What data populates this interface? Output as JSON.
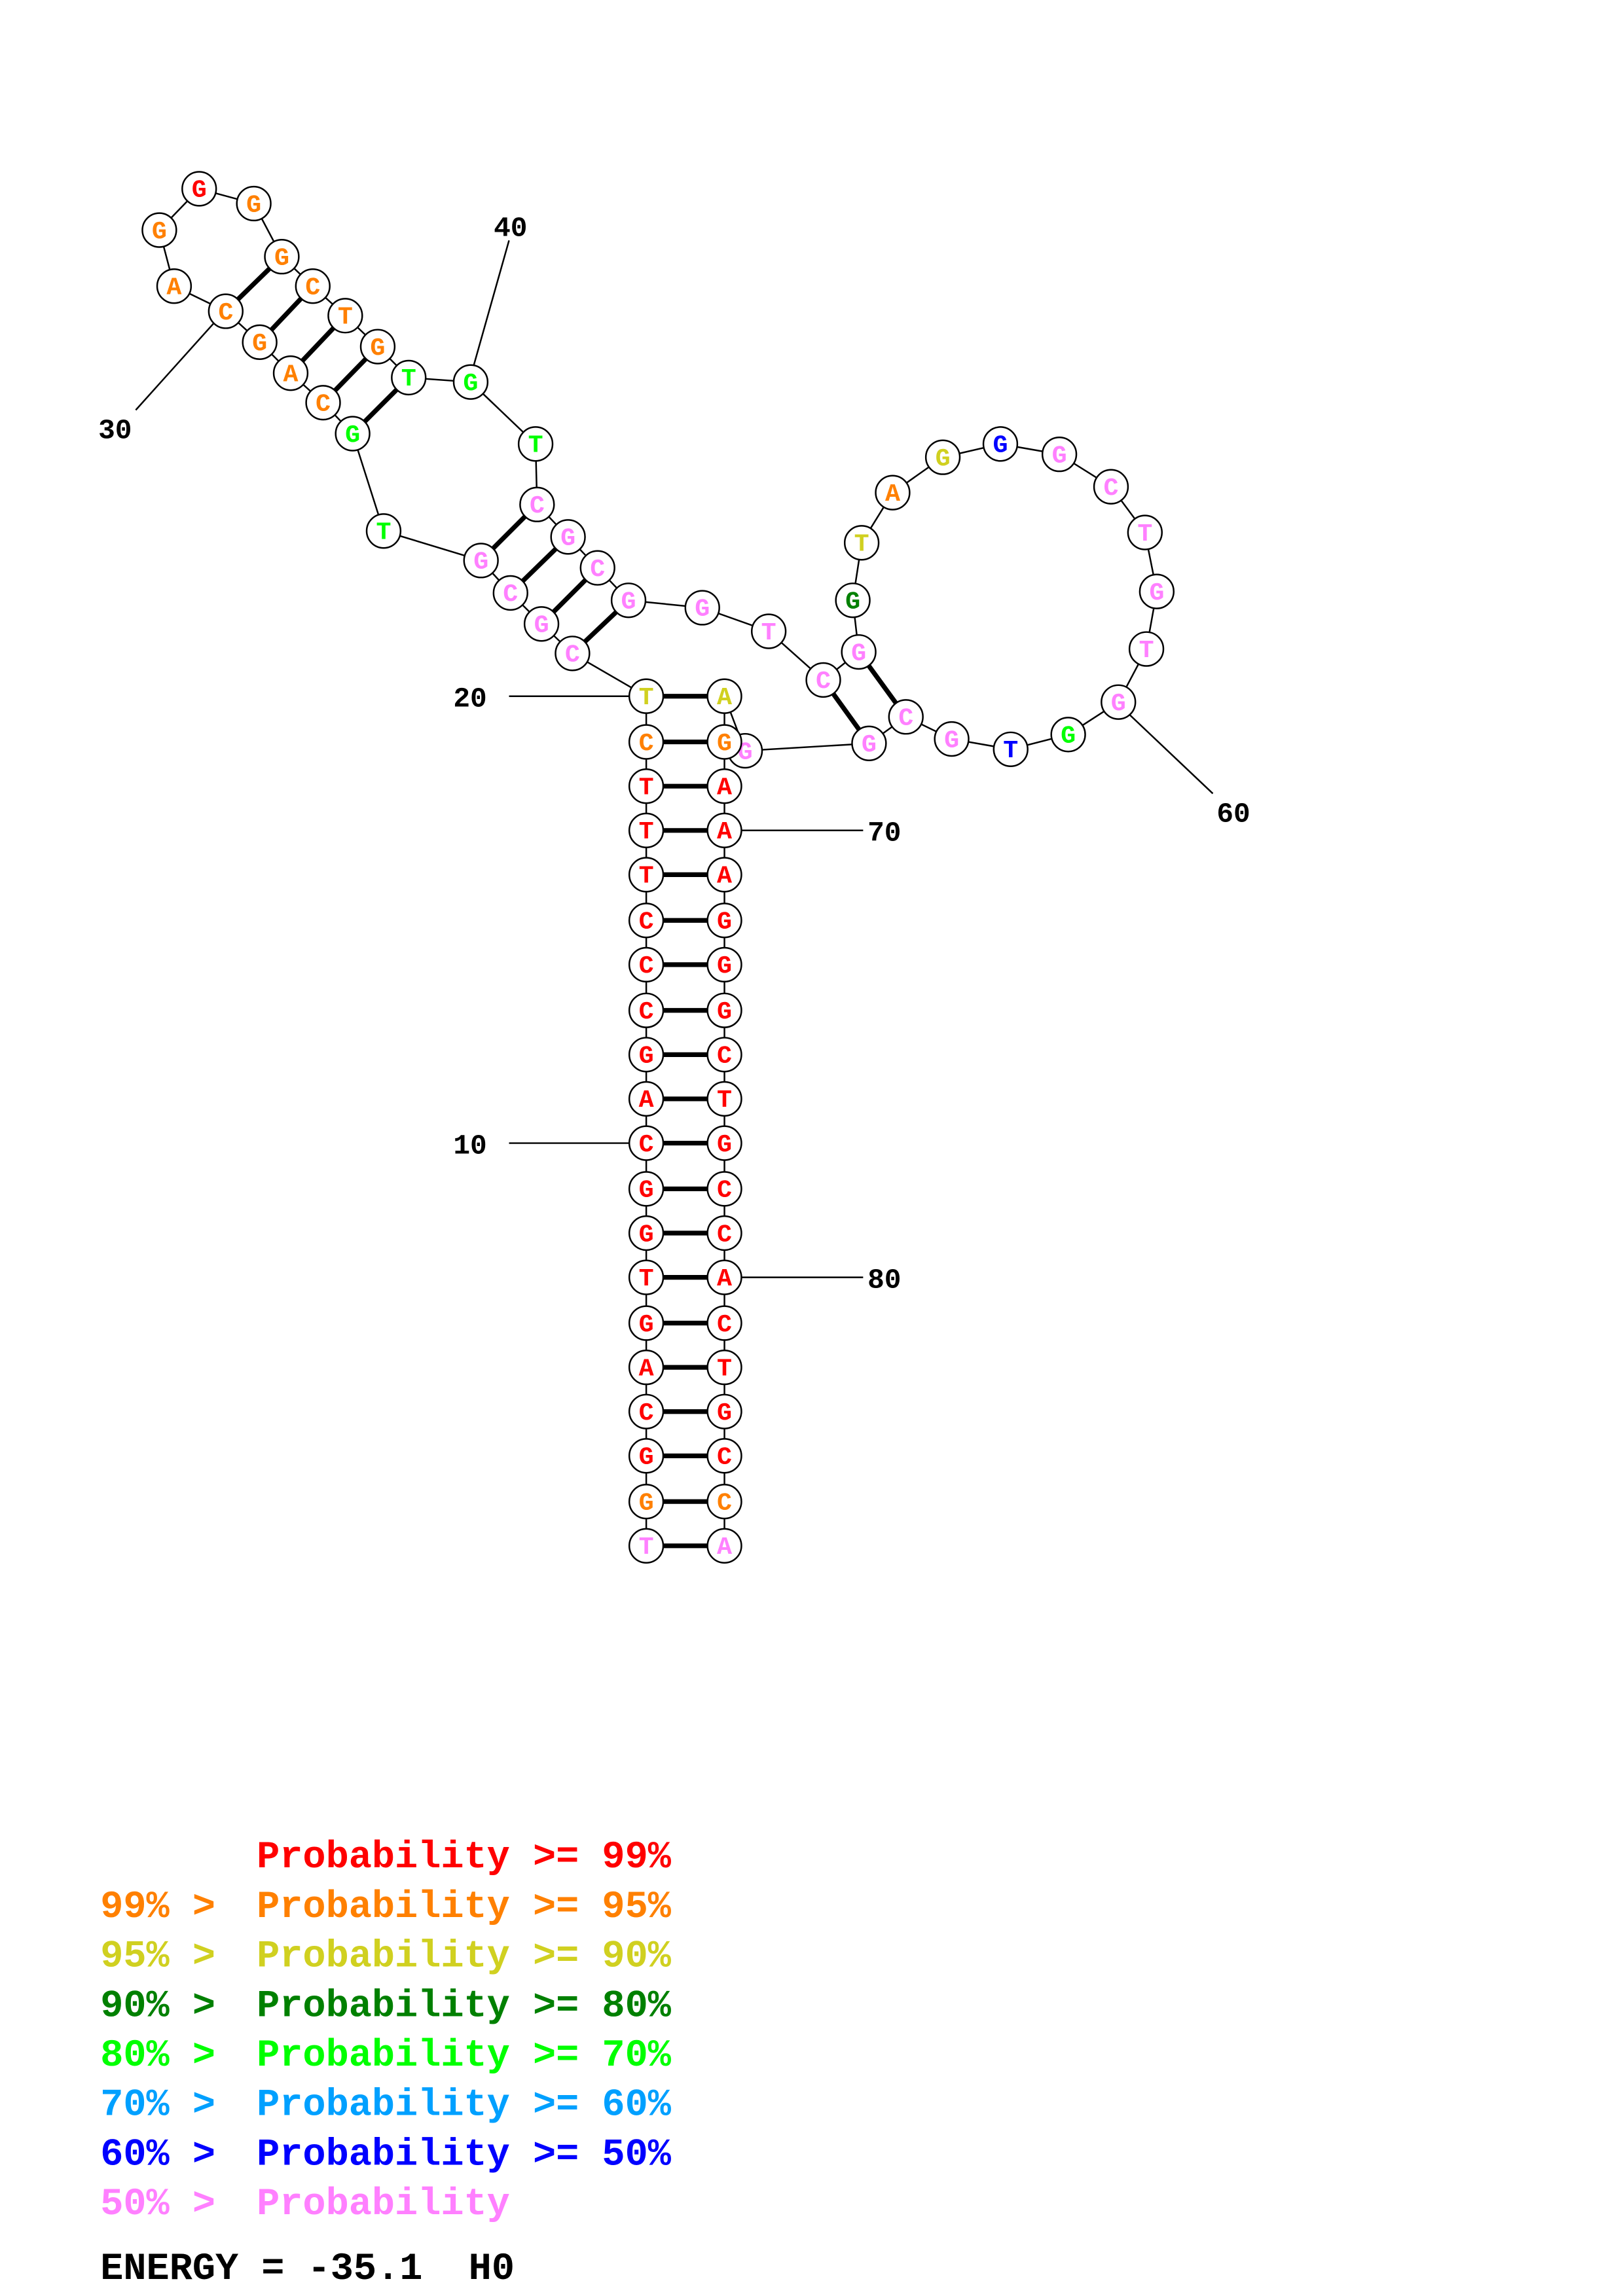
{
  "colors": {
    "p99": "#ff0000",
    "p95": "#ff8000",
    "p90": "#d0d020",
    "p80": "#008000",
    "p70": "#00ff00",
    "p60": "#00a0ff",
    "p50": "#0000ff",
    "plow": "#ff80ff"
  },
  "sequence": [
    {
      "n": 1,
      "base": "T",
      "prob": "plow"
    },
    {
      "n": 2,
      "base": "G",
      "prob": "p95"
    },
    {
      "n": 3,
      "base": "G",
      "prob": "p99"
    },
    {
      "n": 4,
      "base": "C",
      "prob": "p99"
    },
    {
      "n": 5,
      "base": "A",
      "prob": "p99"
    },
    {
      "n": 6,
      "base": "G",
      "prob": "p99"
    },
    {
      "n": 7,
      "base": "T",
      "prob": "p99"
    },
    {
      "n": 8,
      "base": "G",
      "prob": "p99"
    },
    {
      "n": 9,
      "base": "G",
      "prob": "p99"
    },
    {
      "n": 10,
      "base": "C",
      "prob": "p99"
    },
    {
      "n": 11,
      "base": "A",
      "prob": "p99"
    },
    {
      "n": 12,
      "base": "G",
      "prob": "p99"
    },
    {
      "n": 13,
      "base": "C",
      "prob": "p99"
    },
    {
      "n": 14,
      "base": "C",
      "prob": "p99"
    },
    {
      "n": 15,
      "base": "C",
      "prob": "p99"
    },
    {
      "n": 16,
      "base": "T",
      "prob": "p99"
    },
    {
      "n": 17,
      "base": "T",
      "prob": "p99"
    },
    {
      "n": 18,
      "base": "T",
      "prob": "p99"
    },
    {
      "n": 19,
      "base": "C",
      "prob": "p95"
    },
    {
      "n": 20,
      "base": "T",
      "prob": "p90"
    },
    {
      "n": 21,
      "base": "C",
      "prob": "plow"
    },
    {
      "n": 22,
      "base": "G",
      "prob": "plow"
    },
    {
      "n": 23,
      "base": "C",
      "prob": "plow"
    },
    {
      "n": 24,
      "base": "G",
      "prob": "plow"
    },
    {
      "n": 25,
      "base": "T",
      "prob": "p70"
    },
    {
      "n": 26,
      "base": "G",
      "prob": "p70"
    },
    {
      "n": 27,
      "base": "C",
      "prob": "p95"
    },
    {
      "n": 28,
      "base": "A",
      "prob": "p95"
    },
    {
      "n": 29,
      "base": "G",
      "prob": "p95"
    },
    {
      "n": 30,
      "base": "C",
      "prob": "p95"
    },
    {
      "n": 31,
      "base": "A",
      "prob": "p95"
    },
    {
      "n": 32,
      "base": "G",
      "prob": "p95"
    },
    {
      "n": 33,
      "base": "G",
      "prob": "p99"
    },
    {
      "n": 34,
      "base": "G",
      "prob": "p95"
    },
    {
      "n": 35,
      "base": "G",
      "prob": "p95"
    },
    {
      "n": 36,
      "base": "C",
      "prob": "p95"
    },
    {
      "n": 37,
      "base": "T",
      "prob": "p95"
    },
    {
      "n": 38,
      "base": "G",
      "prob": "p95"
    },
    {
      "n": 39,
      "base": "T",
      "prob": "p70"
    },
    {
      "n": 40,
      "base": "G",
      "prob": "p70"
    },
    {
      "n": 41,
      "base": "T",
      "prob": "p70"
    },
    {
      "n": 42,
      "base": "C",
      "prob": "plow"
    },
    {
      "n": 43,
      "base": "G",
      "prob": "plow"
    },
    {
      "n": 44,
      "base": "C",
      "prob": "plow"
    },
    {
      "n": 45,
      "base": "G",
      "prob": "plow"
    },
    {
      "n": 46,
      "base": "G",
      "prob": "plow"
    },
    {
      "n": 47,
      "base": "T",
      "prob": "plow"
    },
    {
      "n": 48,
      "base": "C",
      "prob": "plow"
    },
    {
      "n": 49,
      "base": "G",
      "prob": "plow"
    },
    {
      "n": 50,
      "base": "G",
      "prob": "p80"
    },
    {
      "n": 51,
      "base": "T",
      "prob": "p90"
    },
    {
      "n": 52,
      "base": "A",
      "prob": "p95"
    },
    {
      "n": 53,
      "base": "G",
      "prob": "p90"
    },
    {
      "n": 54,
      "base": "G",
      "prob": "p50"
    },
    {
      "n": 55,
      "base": "G",
      "prob": "plow"
    },
    {
      "n": 56,
      "base": "C",
      "prob": "plow"
    },
    {
      "n": 57,
      "base": "T",
      "prob": "plow"
    },
    {
      "n": 58,
      "base": "G",
      "prob": "plow"
    },
    {
      "n": 59,
      "base": "T",
      "prob": "plow"
    },
    {
      "n": 60,
      "base": "G",
      "prob": "plow"
    },
    {
      "n": 61,
      "base": "G",
      "prob": "p70"
    },
    {
      "n": 62,
      "base": "T",
      "prob": "p50"
    },
    {
      "n": 63,
      "base": "G",
      "prob": "plow"
    },
    {
      "n": 64,
      "base": "C",
      "prob": "plow"
    },
    {
      "n": 65,
      "base": "G",
      "prob": "plow"
    },
    {
      "n": 66,
      "base": "G",
      "prob": "plow"
    },
    {
      "n": 67,
      "base": "A",
      "prob": "p90"
    },
    {
      "n": 68,
      "base": "G",
      "prob": "p95"
    },
    {
      "n": 69,
      "base": "A",
      "prob": "p99"
    },
    {
      "n": 70,
      "base": "A",
      "prob": "p99"
    },
    {
      "n": 71,
      "base": "A",
      "prob": "p99"
    },
    {
      "n": 72,
      "base": "G",
      "prob": "p99"
    },
    {
      "n": 73,
      "base": "G",
      "prob": "p99"
    },
    {
      "n": 74,
      "base": "G",
      "prob": "p99"
    },
    {
      "n": 75,
      "base": "C",
      "prob": "p99"
    },
    {
      "n": 76,
      "base": "T",
      "prob": "p99"
    },
    {
      "n": 77,
      "base": "G",
      "prob": "p99"
    },
    {
      "n": 78,
      "base": "C",
      "prob": "p99"
    },
    {
      "n": 79,
      "base": "C",
      "prob": "p99"
    },
    {
      "n": 80,
      "base": "A",
      "prob": "p99"
    },
    {
      "n": 81,
      "base": "C",
      "prob": "p99"
    },
    {
      "n": 82,
      "base": "T",
      "prob": "p99"
    },
    {
      "n": 83,
      "base": "G",
      "prob": "p99"
    },
    {
      "n": 84,
      "base": "C",
      "prob": "p99"
    },
    {
      "n": 85,
      "base": "C",
      "prob": "p95"
    },
    {
      "n": 86,
      "base": "A",
      "prob": "plow"
    }
  ],
  "pairs": [
    [
      1,
      86
    ],
    [
      2,
      85
    ],
    [
      3,
      84
    ],
    [
      4,
      83
    ],
    [
      5,
      82
    ],
    [
      6,
      81
    ],
    [
      7,
      80
    ],
    [
      8,
      79
    ],
    [
      9,
      78
    ],
    [
      10,
      77
    ],
    [
      11,
      76
    ],
    [
      12,
      75
    ],
    [
      13,
      74
    ],
    [
      14,
      73
    ],
    [
      15,
      72
    ],
    [
      16,
      71
    ],
    [
      17,
      70
    ],
    [
      18,
      69
    ],
    [
      19,
      68
    ],
    [
      20,
      67
    ],
    [
      21,
      45
    ],
    [
      22,
      44
    ],
    [
      23,
      43
    ],
    [
      24,
      42
    ],
    [
      26,
      39
    ],
    [
      27,
      38
    ],
    [
      28,
      37
    ],
    [
      29,
      36
    ],
    [
      30,
      35
    ],
    [
      48,
      65
    ],
    [
      49,
      64
    ]
  ],
  "position_labels": [
    {
      "n": 10,
      "text": "10"
    },
    {
      "n": 20,
      "text": "20"
    },
    {
      "n": 30,
      "text": "30"
    },
    {
      "n": 40,
      "text": "40"
    },
    {
      "n": 60,
      "text": "60"
    },
    {
      "n": 70,
      "text": "70"
    },
    {
      "n": 80,
      "text": "80"
    }
  ],
  "legend": [
    {
      "prefix": "",
      "label": "Probability >= 99%",
      "prob": "p99"
    },
    {
      "prefix": "99% > ",
      "label": "Probability >= 95%",
      "prob": "p95"
    },
    {
      "prefix": "95% > ",
      "label": "Probability >= 90%",
      "prob": "p90"
    },
    {
      "prefix": "90% > ",
      "label": "Probability >= 80%",
      "prob": "p80"
    },
    {
      "prefix": "80% > ",
      "label": "Probability >= 70%",
      "prob": "p70"
    },
    {
      "prefix": "70% > ",
      "label": "Probability >= 60%",
      "prob": "p60"
    },
    {
      "prefix": "60% > ",
      "label": "Probability >= 50%",
      "prob": "p50"
    },
    {
      "prefix": "50% > ",
      "label": "Probability",
      "prob": "plow"
    }
  ],
  "energy": "ENERGY = -35.1  H0"
}
